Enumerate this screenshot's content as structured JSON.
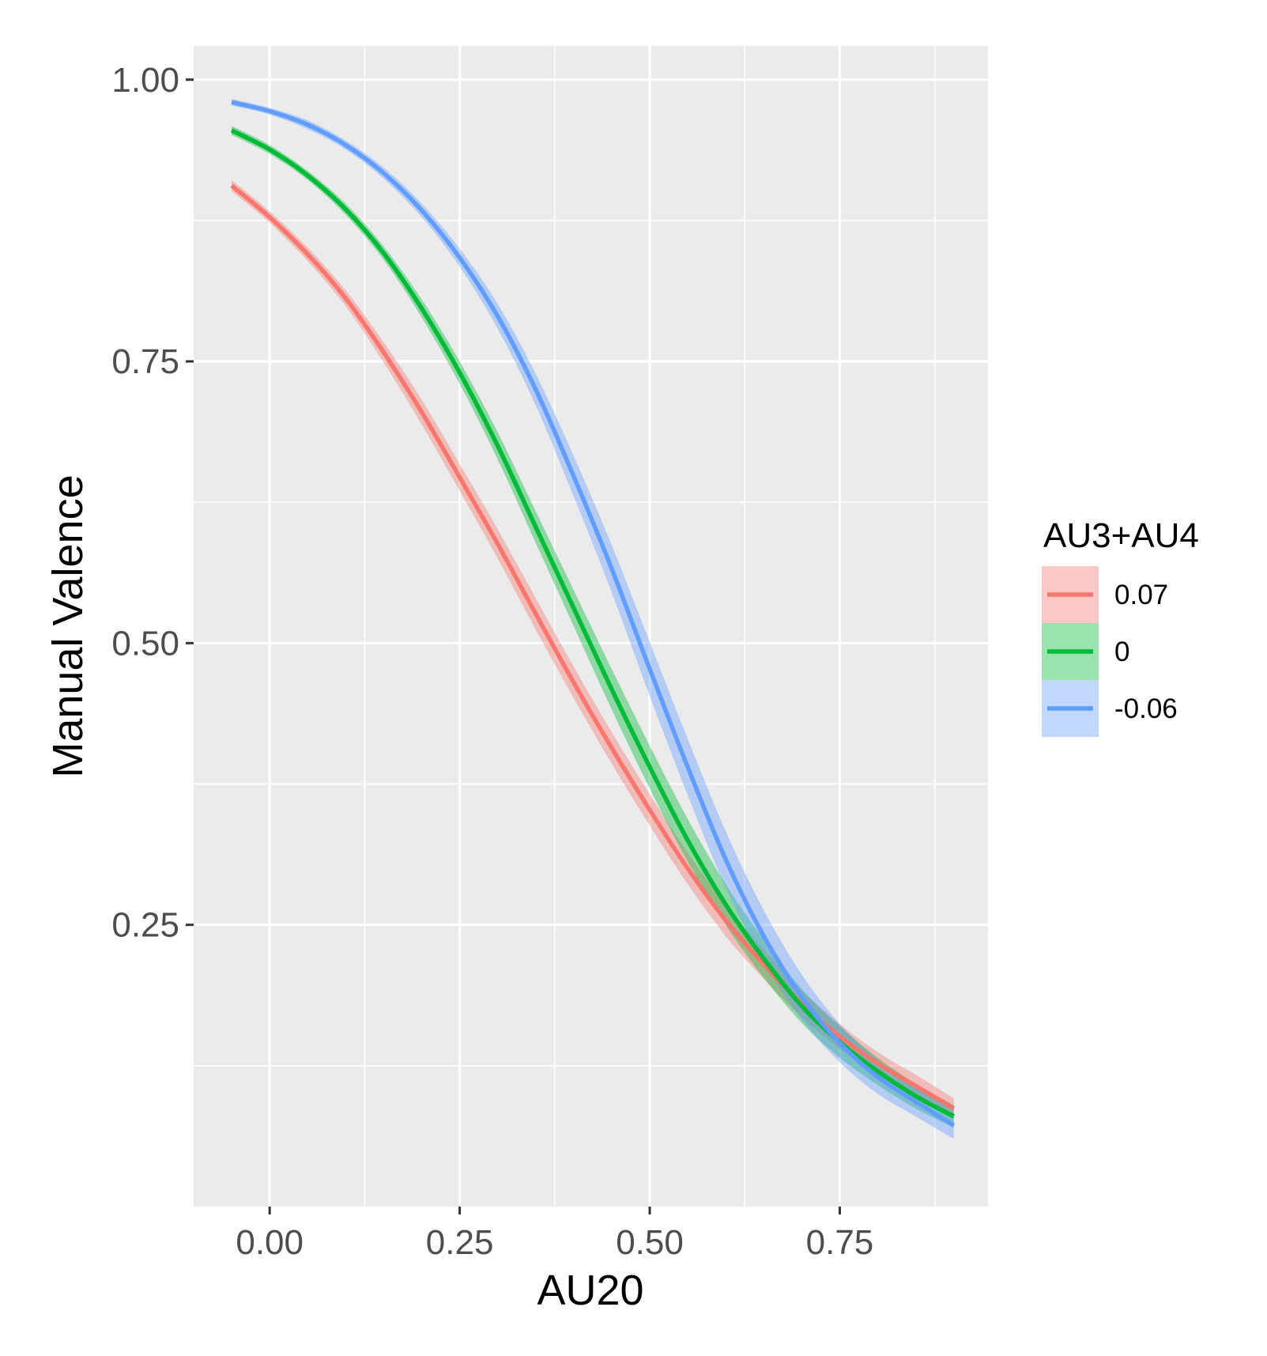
{
  "chart_data": {
    "type": "line",
    "xlabel": "AU20",
    "ylabel": "Manual Valence",
    "xlim": [
      -0.1,
      0.945
    ],
    "ylim": [
      0.0,
      1.03
    ],
    "x_ticks": [
      {
        "value": 0.0,
        "label": "0.00"
      },
      {
        "value": 0.25,
        "label": "0.25"
      },
      {
        "value": 0.5,
        "label": "0.50"
      },
      {
        "value": 0.75,
        "label": "0.75"
      }
    ],
    "y_ticks": [
      {
        "value": 0.25,
        "label": "0.25"
      },
      {
        "value": 0.5,
        "label": "0.50"
      },
      {
        "value": 0.75,
        "label": "0.75"
      },
      {
        "value": 1.0,
        "label": "1.00"
      }
    ],
    "grid": true,
    "legend": {
      "title": "AU3+AU4",
      "position": "right"
    },
    "series": [
      {
        "name": "0.07",
        "color": "#F8766D",
        "x": [
          -0.05,
          0.0,
          0.05,
          0.1,
          0.15,
          0.2,
          0.25,
          0.3,
          0.35,
          0.4,
          0.45,
          0.5,
          0.55,
          0.6,
          0.65,
          0.7,
          0.75,
          0.8,
          0.85,
          0.9
        ],
        "y": [
          0.906,
          0.878,
          0.845,
          0.806,
          0.758,
          0.705,
          0.647,
          0.588,
          0.526,
          0.465,
          0.407,
          0.352,
          0.3,
          0.254,
          0.215,
          0.18,
          0.151,
          0.127,
          0.107,
          0.087
        ],
        "ci_halfwidth": [
          0.005,
          0.005,
          0.006,
          0.007,
          0.009,
          0.011,
          0.012,
          0.013,
          0.014,
          0.014,
          0.014,
          0.014,
          0.014,
          0.014,
          0.013,
          0.012,
          0.011,
          0.01,
          0.01,
          0.009
        ]
      },
      {
        "name": "0",
        "color": "#00BA38",
        "x": [
          -0.05,
          0.0,
          0.05,
          0.1,
          0.15,
          0.2,
          0.25,
          0.3,
          0.35,
          0.4,
          0.45,
          0.5,
          0.55,
          0.6,
          0.65,
          0.7,
          0.75,
          0.8,
          0.85,
          0.9
        ],
        "y": [
          0.955,
          0.938,
          0.915,
          0.885,
          0.846,
          0.797,
          0.74,
          0.675,
          0.603,
          0.531,
          0.459,
          0.39,
          0.325,
          0.268,
          0.22,
          0.178,
          0.146,
          0.12,
          0.098,
          0.08
        ],
        "ci_halfwidth": [
          0.004,
          0.004,
          0.004,
          0.005,
          0.006,
          0.008,
          0.01,
          0.012,
          0.014,
          0.016,
          0.018,
          0.019,
          0.019,
          0.018,
          0.017,
          0.015,
          0.014,
          0.012,
          0.011,
          0.01
        ]
      },
      {
        "name": "-0.06",
        "color": "#619CFF",
        "x": [
          -0.05,
          0.0,
          0.05,
          0.1,
          0.15,
          0.2,
          0.25,
          0.3,
          0.35,
          0.4,
          0.45,
          0.5,
          0.55,
          0.6,
          0.65,
          0.7,
          0.75,
          0.8,
          0.85,
          0.9
        ],
        "y": [
          0.98,
          0.972,
          0.96,
          0.942,
          0.917,
          0.884,
          0.842,
          0.79,
          0.725,
          0.648,
          0.566,
          0.477,
          0.39,
          0.308,
          0.24,
          0.186,
          0.145,
          0.115,
          0.093,
          0.072
        ],
        "ci_halfwidth": [
          0.003,
          0.003,
          0.004,
          0.004,
          0.005,
          0.006,
          0.008,
          0.011,
          0.014,
          0.018,
          0.021,
          0.024,
          0.025,
          0.025,
          0.023,
          0.02,
          0.017,
          0.015,
          0.013,
          0.012
        ]
      }
    ]
  }
}
